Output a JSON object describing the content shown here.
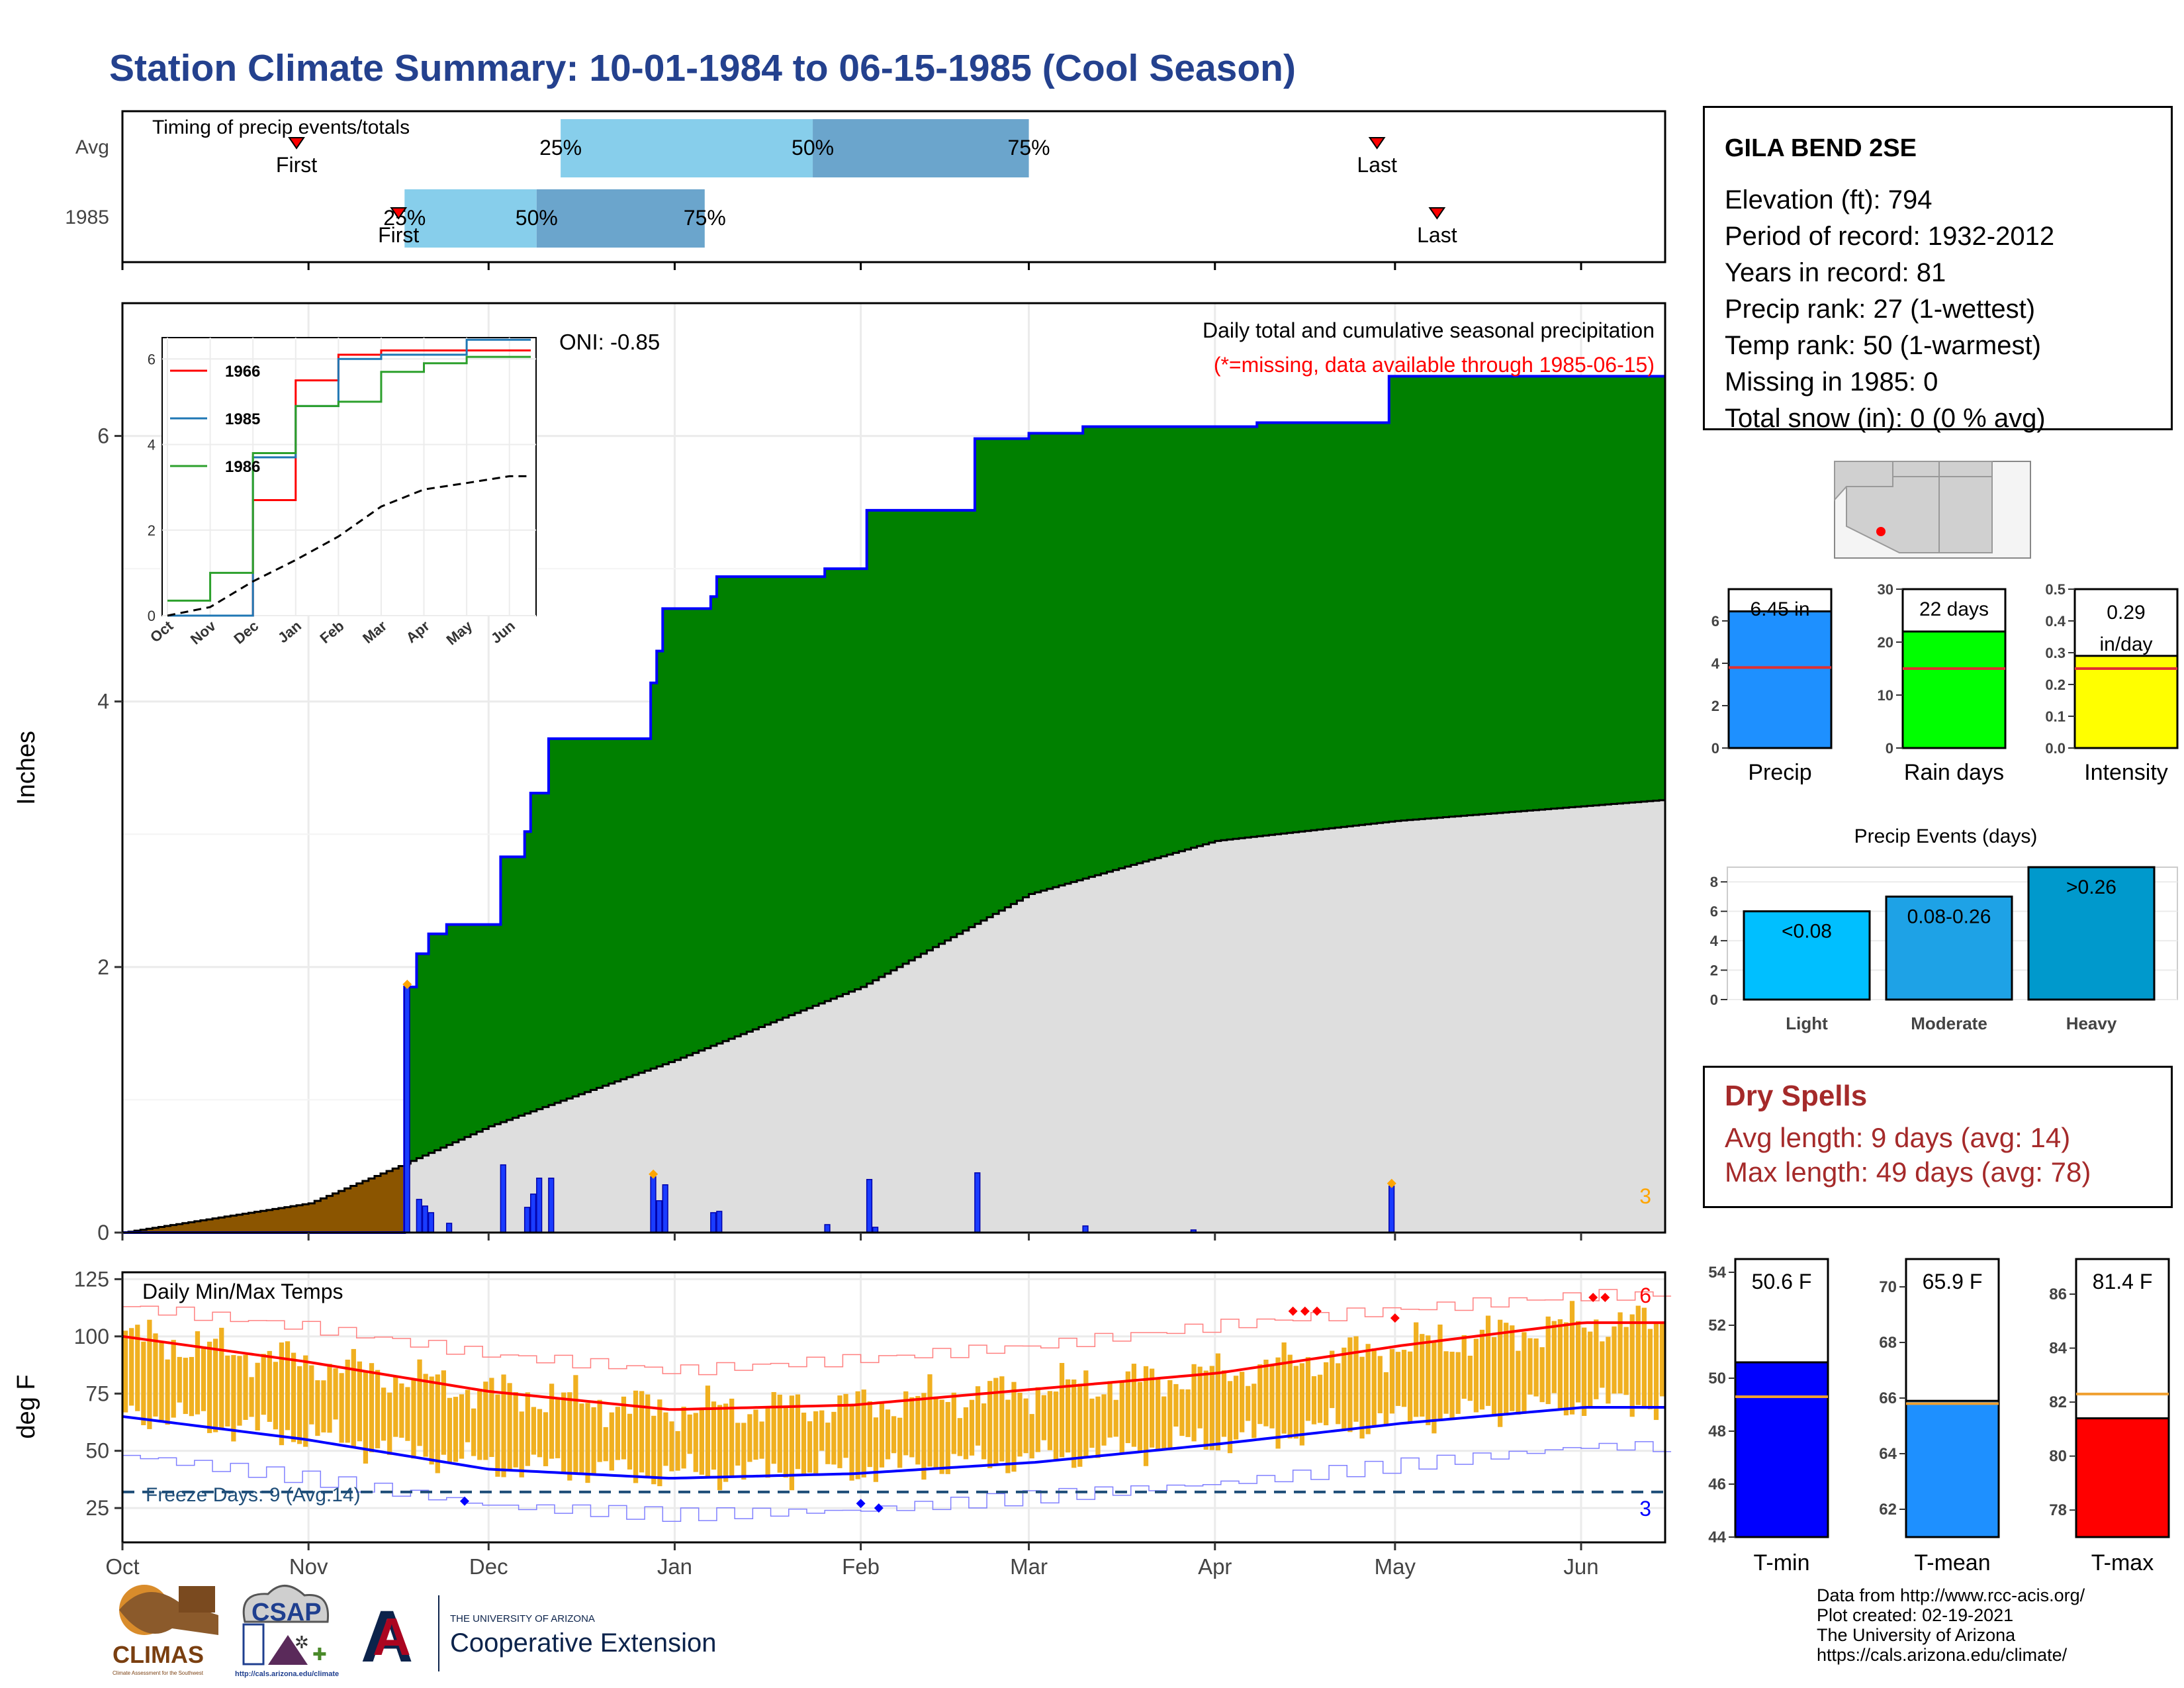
{
  "title": "Station Climate Summary: 10-01-1984 to 06-15-1985 (Cool Season)",
  "colors": {
    "title": "#24418e",
    "cum_fill": "#008000",
    "cum_line": "#0000ff",
    "avg_fill": "#dedede",
    "pre_season": "#8b5500",
    "daily_bar": "#1a3cff",
    "tmax_bar": "#f0b020",
    "avg_tmax": "#ff0000",
    "avg_tmin": "#0000ff",
    "quartile_light": "#87ceeb",
    "quartile_dark": "#6ba5cc",
    "precip_bar": "#1e90ff",
    "raindays_bar": "#00ff00",
    "intensity_bar": "#ffff00",
    "event_light": "#00bfff",
    "event_moderate": "#1ea2e6",
    "event_heavy": "#0099cc",
    "tmin_bar": "#0000ff",
    "tmean_bar": "#1e90ff",
    "tmax_summary_bar": "#ff0000",
    "dry_spells": "#a52a2a"
  },
  "timing": {
    "title": "Timing of precip events/totals",
    "row_labels": [
      "Avg",
      "1985"
    ],
    "avg": {
      "first_label": "First",
      "last_label": "Last",
      "q25_label": "25%",
      "q50_label": "50%",
      "q75_label": "75%"
    },
    "y1985": {
      "first_label": "First",
      "last_label": "Last",
      "q25_label": "25%",
      "q50_label": "50%",
      "q75_label": "75%"
    }
  },
  "precip_chart": {
    "title": "Daily total and cumulative seasonal precipitation",
    "subtitle": "(*=missing, data available through 1985-06-15)",
    "oni": "ONI: -0.85",
    "ylabel": "Inches",
    "y_ticks": [
      "0",
      "2",
      "4",
      "6"
    ],
    "count_label": "3"
  },
  "inset": {
    "y_ticks": [
      "0",
      "2",
      "4",
      "6"
    ],
    "x_ticks": [
      "Oct",
      "Nov",
      "Dec",
      "Jan",
      "Feb",
      "Mar",
      "Apr",
      "May",
      "Jun"
    ],
    "legend": [
      "1966",
      "1985",
      "1986"
    ],
    "legend_colors": [
      "#ff0000",
      "#1f77b4",
      "#2ca02c"
    ]
  },
  "temp_chart": {
    "title": "Daily Min/Max Temps",
    "ylabel": "deg F",
    "y_ticks": [
      "25",
      "50",
      "75",
      "100",
      "125"
    ],
    "freeze_label": "Freeze Days: 9 (Avg:14)",
    "high_count": "6",
    "low_count": "3"
  },
  "x_months": [
    "Oct",
    "Nov",
    "Dec",
    "Jan",
    "Feb",
    "Mar",
    "Apr",
    "May",
    "Jun"
  ],
  "station": {
    "name": "GILA BEND 2SE",
    "lines": [
      "Elevation (ft): 794",
      "Period of record: 1932-2012",
      "Years in record: 81",
      "Precip rank: 27 (1-wettest)",
      "Temp rank: 50 (1-warmest)",
      "Missing in 1985: 0",
      "Total snow (in): 0 (0 % avg)"
    ]
  },
  "summary_bars": {
    "precip": {
      "label": "Precip",
      "value_label": "6.45 in",
      "value": 6.45,
      "avg": 3.8,
      "ylim": [
        0,
        7.5
      ],
      "ticks": [
        "0",
        "2",
        "4",
        "6"
      ]
    },
    "rain_days": {
      "label": "Rain days",
      "value_label": "22 days",
      "value": 22,
      "avg": 15,
      "ylim": [
        0,
        30
      ],
      "ticks": [
        "0",
        "10",
        "20",
        "30"
      ]
    },
    "intensity": {
      "label": "Intensity",
      "value_label_1": "0.29",
      "value_label_2": "in/day",
      "value": 0.29,
      "avg": 0.25,
      "ylim": [
        0,
        0.5
      ],
      "ticks": [
        "0.0",
        "0.1",
        "0.2",
        "0.3",
        "0.4",
        "0.5"
      ]
    }
  },
  "precip_events": {
    "title": "Precip Events (days)",
    "ticks": [
      "0",
      "2",
      "4",
      "6",
      "8"
    ],
    "categories": [
      "Light",
      "Moderate",
      "Heavy"
    ],
    "bar_labels": [
      "<0.08",
      "0.08-0.26",
      ">0.26"
    ],
    "values": [
      6,
      7,
      9
    ],
    "ylim": [
      0,
      9
    ]
  },
  "dry_spells": {
    "title": "Dry Spells",
    "avg_line": "Avg length: 9 days (avg: 14)",
    "max_line": "Max length: 49 days (avg: 78)"
  },
  "temp_summary": {
    "tmin": {
      "label": "T-min",
      "value_label": "50.6 F",
      "value": 50.6,
      "avg": 49.3,
      "ylim": [
        44,
        54.5
      ],
      "ticks": [
        "44",
        "46",
        "48",
        "50",
        "52",
        "54"
      ]
    },
    "tmean": {
      "label": "T-mean",
      "value_label": "65.9 F",
      "value": 65.9,
      "avg": 65.8,
      "ylim": [
        61,
        71
      ],
      "ticks": [
        "62",
        "64",
        "66",
        "68",
        "70"
      ]
    },
    "tmax": {
      "label": "T-max",
      "value_label": "81.4 F",
      "value": 81.4,
      "avg": 82.3,
      "ylim": [
        77,
        87.3
      ],
      "ticks": [
        "78",
        "80",
        "82",
        "84",
        "86"
      ]
    }
  },
  "logos": {
    "climas": "CLIMAS",
    "climas_sub": "Climate Assessment for the Southwest",
    "csap": "CSAP",
    "csap_url": "http://cals.arizona.edu/climate",
    "ua_top": "THE UNIVERSITY OF ARIZONA",
    "ua_main": "Cooperative Extension"
  },
  "footer": [
    "Data from http://www.rcc-acis.org/",
    "Plot created: 02-19-2021",
    "The University of Arizona",
    "https://cals.arizona.edu/climate/"
  ],
  "chart_data": [
    {
      "type": "bar",
      "title": "Timing of precip events/totals",
      "series": [
        {
          "name": "Avg",
          "first": "1984-10-30",
          "q25": "1984-12-13",
          "q50": "1985-01-24",
          "q75": "1985-03-01",
          "last": "1985-04-28"
        },
        {
          "name": "1985",
          "first": "1984-11-16",
          "q25": "1984-11-17",
          "q50": "1984-12-09",
          "q75": "1985-01-06",
          "last": "1985-05-08"
        }
      ]
    },
    {
      "type": "area",
      "title": "Daily total and cumulative seasonal precipitation",
      "ylabel": "Inches",
      "ylim": [
        0,
        7.0
      ],
      "cumulative_steps": [
        [
          "1984-10-01",
          0
        ],
        [
          "1984-11-17",
          1.85
        ],
        [
          "1984-11-19",
          2.1
        ],
        [
          "1984-11-21",
          2.25
        ],
        [
          "1984-11-24",
          2.32
        ],
        [
          "1984-12-03",
          2.83
        ],
        [
          "1984-12-07",
          3.02
        ],
        [
          "1984-12-08",
          3.31
        ],
        [
          "1984-12-11",
          3.72
        ],
        [
          "1984-12-28",
          4.14
        ],
        [
          "1984-12-29",
          4.38
        ],
        [
          "1984-12-30",
          4.7
        ],
        [
          "1985-01-07",
          4.79
        ],
        [
          "1985-01-08",
          4.94
        ],
        [
          "1985-01-26",
          5.0
        ],
        [
          "1985-02-02",
          5.44
        ],
        [
          "1985-02-20",
          5.98
        ],
        [
          "1985-03-01",
          6.02
        ],
        [
          "1985-03-10",
          6.07
        ],
        [
          "1985-04-08",
          6.1
        ],
        [
          "1985-04-30",
          6.45
        ],
        [
          "1985-06-15",
          6.45
        ]
      ],
      "average_cumulative": [
        [
          "1984-10-01",
          0
        ],
        [
          "1984-11-01",
          0.22
        ],
        [
          "1984-11-17",
          0.52
        ],
        [
          "1984-12-01",
          0.8
        ],
        [
          "1985-01-01",
          1.3
        ],
        [
          "1985-02-01",
          1.85
        ],
        [
          "1985-03-01",
          2.55
        ],
        [
          "1985-04-01",
          2.95
        ],
        [
          "1985-05-01",
          3.1
        ],
        [
          "1985-06-15",
          3.26
        ]
      ],
      "daily": [
        [
          "1984-11-17",
          1.85
        ],
        [
          "1984-11-19",
          0.25
        ],
        [
          "1984-11-20",
          0.2
        ],
        [
          "1984-11-21",
          0.15
        ],
        [
          "1984-11-24",
          0.07
        ],
        [
          "1984-12-03",
          0.51
        ],
        [
          "1984-12-07",
          0.19
        ],
        [
          "1984-12-08",
          0.29
        ],
        [
          "1984-12-09",
          0.41
        ],
        [
          "1984-12-11",
          0.41
        ],
        [
          "1984-12-28",
          0.42
        ],
        [
          "1984-12-29",
          0.24
        ],
        [
          "1984-12-30",
          0.36
        ],
        [
          "1985-01-07",
          0.15
        ],
        [
          "1985-01-08",
          0.16
        ],
        [
          "1985-01-26",
          0.06
        ],
        [
          "1985-02-02",
          0.4
        ],
        [
          "1985-02-03",
          0.04
        ],
        [
          "1985-02-20",
          0.45
        ],
        [
          "1985-03-10",
          0.05
        ],
        [
          "1985-03-28",
          0.02
        ],
        [
          "1985-04-30",
          0.35
        ]
      ]
    },
    {
      "type": "line",
      "title": "",
      "x": [
        "Oct",
        "Nov",
        "Dec",
        "Jan",
        "Feb",
        "Mar",
        "Apr",
        "May",
        "Jun"
      ],
      "ylim": [
        0,
        6.5
      ],
      "series": [
        {
          "name": "1966",
          "values": [
            0,
            0,
            2.7,
            5.5,
            6.1,
            6.2,
            6.2,
            6.2,
            6.2
          ]
        },
        {
          "name": "1985",
          "values": [
            0,
            0,
            3.7,
            4.9,
            6.0,
            6.1,
            6.1,
            6.45,
            6.45
          ]
        },
        {
          "name": "1986",
          "values": [
            0.35,
            1.0,
            3.8,
            4.9,
            5.0,
            5.7,
            5.9,
            6.05,
            6.05
          ]
        }
      ],
      "average": [
        0,
        0.2,
        0.8,
        1.3,
        1.85,
        2.55,
        2.95,
        3.1,
        3.26
      ]
    },
    {
      "type": "bar",
      "title": "Daily Min/Max Temps",
      "ylabel": "deg F",
      "ylim": [
        10,
        125
      ],
      "x": [
        "Oct",
        "Nov",
        "Dec",
        "Jan",
        "Feb",
        "Mar",
        "Apr",
        "May",
        "Jun"
      ],
      "avg_tmax": [
        100,
        89,
        76,
        68,
        70,
        77,
        84,
        96,
        106
      ],
      "avg_tmin": [
        65,
        55,
        42,
        38,
        40,
        45,
        53,
        62,
        69
      ],
      "record_high": [
        113,
        104,
        92,
        85,
        90,
        96,
        105,
        112,
        118
      ],
      "record_low": [
        48,
        38,
        26,
        22,
        24,
        30,
        36,
        44,
        52
      ],
      "freeze_threshold": 32
    },
    {
      "type": "bar",
      "categories": [
        "Precip"
      ],
      "values": [
        6.45
      ],
      "ylim": [
        0,
        7.5
      ]
    },
    {
      "type": "bar",
      "categories": [
        "Rain days"
      ],
      "values": [
        22
      ],
      "ylim": [
        0,
        30
      ]
    },
    {
      "type": "bar",
      "categories": [
        "Intensity"
      ],
      "values": [
        0.29
      ],
      "ylim": [
        0,
        0.5
      ]
    },
    {
      "type": "bar",
      "title": "Precip Events (days)",
      "categories": [
        "Light",
        "Moderate",
        "Heavy"
      ],
      "values": [
        6,
        7,
        9
      ],
      "ylim": [
        0,
        9
      ]
    },
    {
      "type": "bar",
      "categories": [
        "T-min"
      ],
      "values": [
        50.6
      ],
      "ylim": [
        44,
        54.5
      ]
    },
    {
      "type": "bar",
      "categories": [
        "T-mean"
      ],
      "values": [
        65.9
      ],
      "ylim": [
        61,
        71
      ]
    },
    {
      "type": "bar",
      "categories": [
        "T-max"
      ],
      "values": [
        81.4
      ],
      "ylim": [
        77,
        87.3
      ]
    }
  ]
}
